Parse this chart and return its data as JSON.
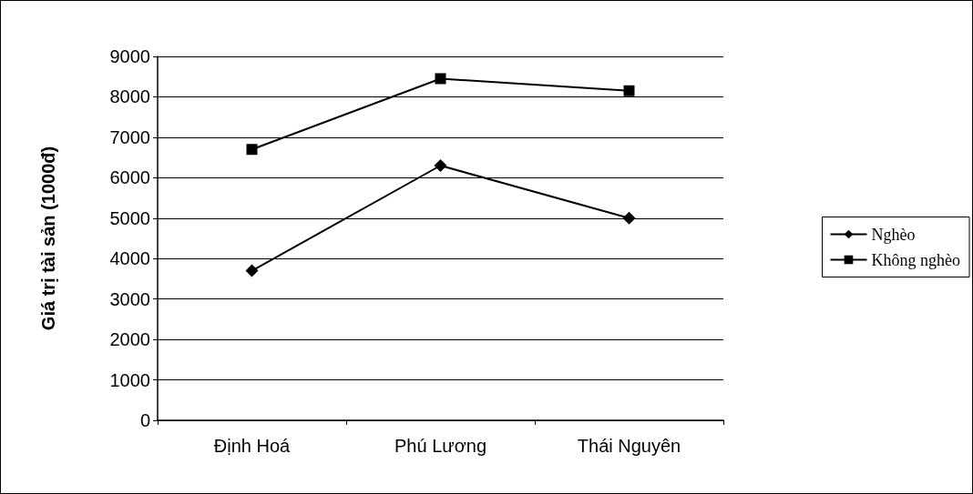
{
  "chart_data": {
    "type": "line",
    "ylabel": "Giá trị tài sản (1000đ)",
    "categories": [
      "Định Hoá",
      "Phú Lương",
      "Thái Nguyên"
    ],
    "series": [
      {
        "name": "Nghèo",
        "color": "#000000",
        "marker": "diamond",
        "values": [
          3700,
          6300,
          5000
        ]
      },
      {
        "name": "Không nghèo",
        "color": "#000000",
        "marker": "square",
        "values": [
          6700,
          8450,
          8150
        ]
      }
    ],
    "ylim": [
      0,
      9000
    ],
    "yticks": [
      0,
      1000,
      2000,
      3000,
      4000,
      5000,
      6000,
      7000,
      8000,
      9000
    ],
    "grid": "y",
    "legend": "right",
    "line_style": "solid"
  }
}
